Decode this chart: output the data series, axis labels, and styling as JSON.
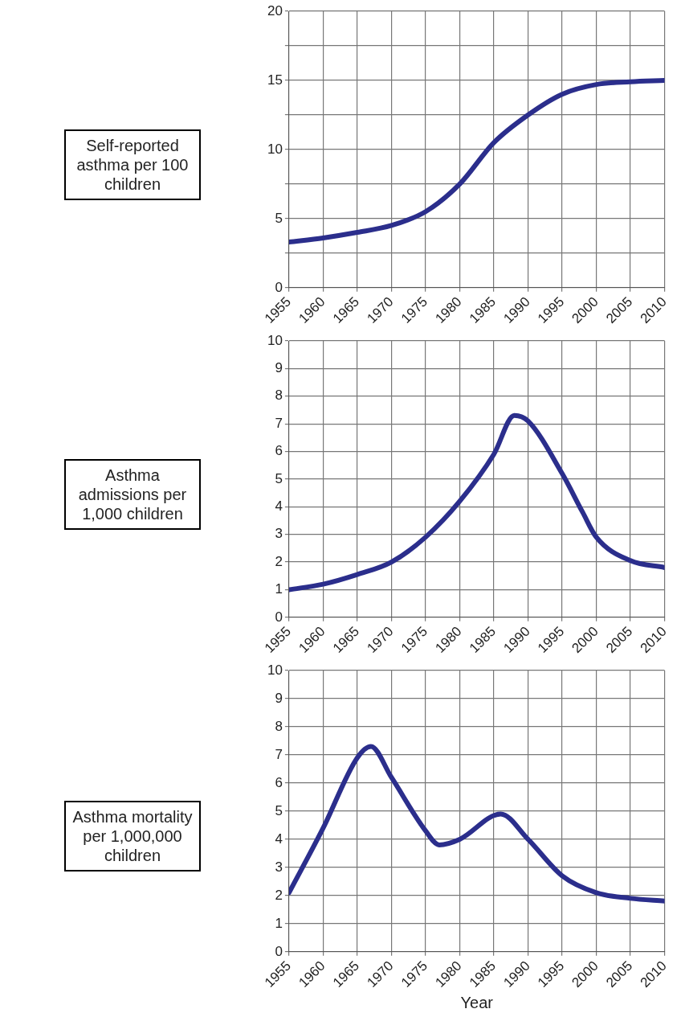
{
  "chart_data": [
    {
      "type": "line",
      "ylabel": "Self-reported asthma per 100 children",
      "x": [
        1955,
        1960,
        1965,
        1970,
        1975,
        1980,
        1985,
        1990,
        1995,
        2000,
        2005,
        2010
      ],
      "series": [
        {
          "color": "#2b2e8c",
          "values": [
            3.3,
            3.6,
            4.0,
            4.5,
            5.5,
            7.5,
            10.5,
            12.5,
            14.0,
            14.7,
            14.9,
            15.0
          ]
        }
      ],
      "xlim": [
        1955,
        2010
      ],
      "xticks": [
        1955,
        1960,
        1965,
        1970,
        1975,
        1980,
        1985,
        1990,
        1995,
        2000,
        2005,
        2010
      ],
      "ylim": [
        0,
        20
      ],
      "yticks": [
        0,
        {
          "value": 2.5,
          "label": null
        },
        5,
        {
          "value": 7.5,
          "label": null
        },
        10,
        {
          "value": 12.5,
          "label": null
        },
        15,
        {
          "value": 17.5,
          "label": null
        },
        20
      ],
      "grid": true,
      "marker": "none"
    },
    {
      "type": "line",
      "ylabel": "Asthma admissions per 1,000 children",
      "x": [
        1955,
        1960,
        1965,
        1970,
        1975,
        1980,
        1985,
        1988,
        1990,
        1995,
        1998,
        2000,
        2005,
        2010
      ],
      "series": [
        {
          "color": "#2b2e8c",
          "values": [
            1.0,
            1.2,
            1.55,
            2.0,
            2.9,
            4.2,
            5.9,
            7.3,
            7.1,
            5.2,
            3.8,
            2.9,
            2.05,
            1.8
          ]
        }
      ],
      "xlim": [
        1955,
        2010
      ],
      "xticks": [
        1955,
        1960,
        1965,
        1970,
        1975,
        1980,
        1985,
        1990,
        1995,
        2000,
        2005,
        2010
      ],
      "ylim": [
        0,
        10
      ],
      "yticks": [
        0,
        1,
        2,
        3,
        4,
        5,
        6,
        7,
        8,
        9,
        10
      ],
      "grid": true,
      "marker": "none"
    },
    {
      "type": "line",
      "ylabel": "Asthma mortality per 1,000,000 children",
      "xlabel": "Year",
      "x": [
        1955,
        1960,
        1965,
        1967,
        1970,
        1975,
        1977,
        1980,
        1986,
        1990,
        1995,
        2000,
        2005,
        2010
      ],
      "series": [
        {
          "color": "#2b2e8c",
          "values": [
            2.1,
            4.4,
            6.9,
            7.3,
            6.2,
            4.3,
            3.8,
            4.0,
            4.9,
            4.0,
            2.7,
            2.1,
            1.9,
            1.8
          ]
        }
      ],
      "xlim": [
        1955,
        2010
      ],
      "xticks": [
        1955,
        1960,
        1965,
        1970,
        1975,
        1980,
        1985,
        1990,
        1995,
        2000,
        2005,
        2010
      ],
      "ylim": [
        0,
        10
      ],
      "yticks": [
        0,
        1,
        2,
        3,
        4,
        5,
        6,
        7,
        8,
        9,
        10
      ],
      "grid": true,
      "marker": "none"
    }
  ]
}
